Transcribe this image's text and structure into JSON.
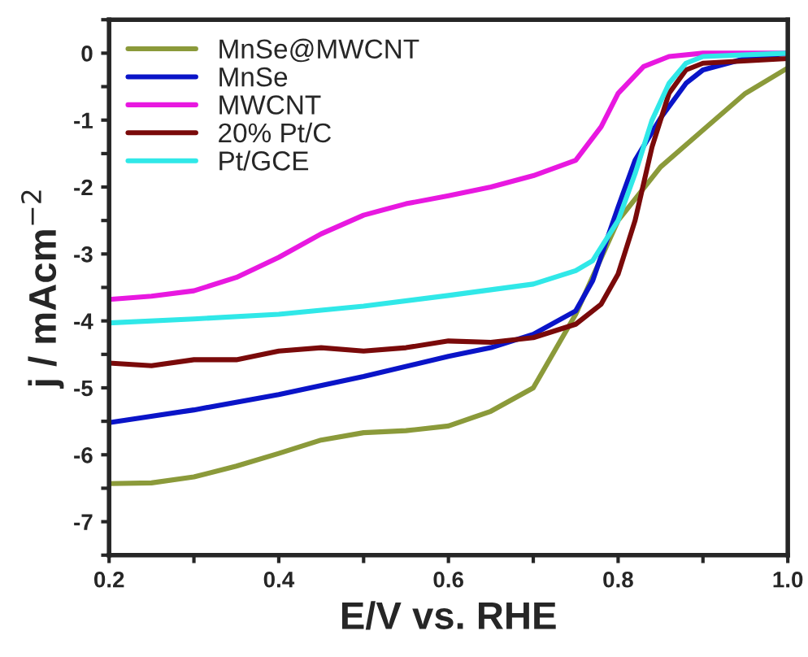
{
  "chart_data": {
    "type": "line",
    "xlabel": "E/V vs. RHE",
    "ylabel": "j / mAcm$^{−2}$",
    "xlim": [
      0.2,
      1.0
    ],
    "ylim": [
      -7.5,
      0.5
    ],
    "xticks": [
      {
        "value": 0.2,
        "label": "0.2"
      },
      {
        "value": 0.3,
        "label": null
      },
      {
        "value": 0.4,
        "label": "0.4"
      },
      {
        "value": 0.5,
        "label": null
      },
      {
        "value": 0.6,
        "label": "0.6"
      },
      {
        "value": 0.7,
        "label": null
      },
      {
        "value": 0.8,
        "label": "0.8"
      },
      {
        "value": 0.9,
        "label": null
      },
      {
        "value": 1.0,
        "label": "1.0"
      }
    ],
    "yticks": [
      {
        "value": -7.5,
        "label": null
      },
      -7,
      {
        "value": -6.5,
        "label": null
      },
      -6,
      {
        "value": -5.5,
        "label": null
      },
      -5,
      {
        "value": -4.5,
        "label": null
      },
      -4,
      {
        "value": -3.5,
        "label": null
      },
      -3,
      {
        "value": -2.5,
        "label": null
      },
      -2,
      {
        "value": -1.5,
        "label": null
      },
      -1,
      {
        "value": -0.5,
        "label": null
      },
      0,
      {
        "value": 0.5,
        "label": null
      }
    ],
    "grid": false,
    "legend": "top left",
    "line_style": "solid",
    "marker": "none",
    "series": [
      {
        "name": "MnSe@MWCNT",
        "color": "#8b9a3a",
        "x": [
          0.2,
          0.25,
          0.3,
          0.35,
          0.4,
          0.45,
          0.5,
          0.55,
          0.6,
          0.65,
          0.7,
          0.75,
          0.8,
          0.85,
          0.9,
          0.95,
          1.0
        ],
        "values": [
          -6.43,
          -6.42,
          -6.33,
          -6.17,
          -5.98,
          -5.78,
          -5.67,
          -5.64,
          -5.57,
          -5.35,
          -5.0,
          -3.9,
          -2.5,
          -1.7,
          -1.15,
          -0.6,
          -0.22
        ]
      },
      {
        "name": "MnSe",
        "color": "#0a14c8",
        "x": [
          0.2,
          0.3,
          0.4,
          0.5,
          0.6,
          0.65,
          0.7,
          0.75,
          0.77,
          0.8,
          0.82,
          0.85,
          0.88,
          0.9,
          0.95,
          1.0
        ],
        "values": [
          -5.52,
          -5.33,
          -5.1,
          -4.83,
          -4.53,
          -4.4,
          -4.2,
          -3.85,
          -3.4,
          -2.3,
          -1.6,
          -0.97,
          -0.45,
          -0.25,
          -0.08,
          0.0
        ]
      },
      {
        "name": "MWCNT",
        "color": "#e818e0",
        "x": [
          0.2,
          0.25,
          0.3,
          0.35,
          0.4,
          0.45,
          0.5,
          0.55,
          0.6,
          0.65,
          0.7,
          0.75,
          0.78,
          0.8,
          0.83,
          0.86,
          0.9,
          1.0
        ],
        "values": [
          -3.68,
          -3.63,
          -3.55,
          -3.35,
          -3.05,
          -2.7,
          -2.42,
          -2.25,
          -2.13,
          -2.0,
          -1.83,
          -1.6,
          -1.1,
          -0.6,
          -0.2,
          -0.05,
          0.0,
          0.0
        ]
      },
      {
        "name": "20% Pt/C",
        "color": "#7a0a0a",
        "x": [
          0.2,
          0.25,
          0.3,
          0.35,
          0.4,
          0.45,
          0.5,
          0.55,
          0.6,
          0.65,
          0.7,
          0.75,
          0.78,
          0.8,
          0.82,
          0.84,
          0.86,
          0.88,
          0.9,
          1.0
        ],
        "values": [
          -4.63,
          -4.67,
          -4.58,
          -4.58,
          -4.45,
          -4.4,
          -4.45,
          -4.4,
          -4.3,
          -4.32,
          -4.25,
          -4.05,
          -3.75,
          -3.3,
          -2.5,
          -1.4,
          -0.6,
          -0.25,
          -0.15,
          -0.08
        ]
      },
      {
        "name": "Pt/GCE",
        "color": "#30e8e8",
        "x": [
          0.2,
          0.3,
          0.4,
          0.5,
          0.6,
          0.7,
          0.75,
          0.77,
          0.8,
          0.82,
          0.84,
          0.86,
          0.88,
          0.9,
          1.0
        ],
        "values": [
          -4.03,
          -3.97,
          -3.9,
          -3.78,
          -3.62,
          -3.45,
          -3.25,
          -3.1,
          -2.5,
          -1.8,
          -1.0,
          -0.45,
          -0.15,
          -0.05,
          0.0
        ]
      }
    ]
  }
}
